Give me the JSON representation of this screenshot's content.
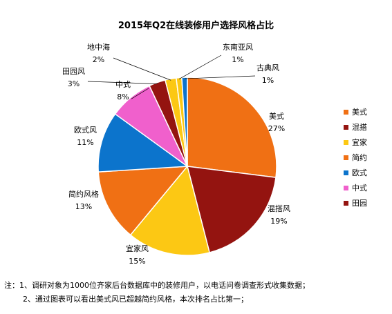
{
  "chart_data": {
    "type": "pie",
    "title": "2015年Q2在线装修用户选择风格占比",
    "slices": [
      {
        "name": "美式",
        "label": "美式",
        "pct_label": "27%",
        "value": 27,
        "color": "#F07014"
      },
      {
        "name": "混搭",
        "label": "混搭风",
        "pct_label": "19%",
        "value": 19,
        "color": "#941410"
      },
      {
        "name": "宜家",
        "label": "宜家风",
        "pct_label": "15%",
        "value": 15,
        "color": "#FCC814"
      },
      {
        "name": "简约",
        "label": "简约风格",
        "pct_label": "13%",
        "value": 13,
        "color": "#F07014"
      },
      {
        "name": "欧式",
        "label": "欧式风",
        "pct_label": "11%",
        "value": 11,
        "color": "#0C74CC"
      },
      {
        "name": "中式",
        "label": "中式",
        "pct_label": "8%",
        "value": 8,
        "color": "#F060CC"
      },
      {
        "name": "田园",
        "label": "田园风",
        "pct_label": "3%",
        "value": 3,
        "color": "#941410"
      },
      {
        "name": "地中海",
        "label": "地中海",
        "pct_label": "2%",
        "value": 2,
        "color": "#FCC814"
      },
      {
        "name": "东南亚",
        "label": "东南亚风",
        "pct_label": "1%",
        "value": 1,
        "color": "#FCC814"
      },
      {
        "name": "古典",
        "label": "古典风",
        "pct_label": "1%",
        "value": 1,
        "color": "#0C74CC"
      }
    ],
    "legend": {
      "placement": "right",
      "items": [
        {
          "label": "美式",
          "color": "#F07014"
        },
        {
          "label": "混搭",
          "color": "#941410"
        },
        {
          "label": "宜家",
          "color": "#FCC814"
        },
        {
          "label": "简约",
          "color": "#F07014"
        },
        {
          "label": "欧式",
          "color": "#0C74CC"
        },
        {
          "label": "中式",
          "color": "#F060CC"
        },
        {
          "label": "田园",
          "color": "#941410"
        }
      ]
    }
  },
  "notes": {
    "line1": "注：1、调研对象为1000位齐家后台数据库中的装修用户，以电话问卷调查形式收集数据；",
    "line2": "2、通过图表可以看出美式风已超越简约风格，本次排名占比第一；"
  }
}
